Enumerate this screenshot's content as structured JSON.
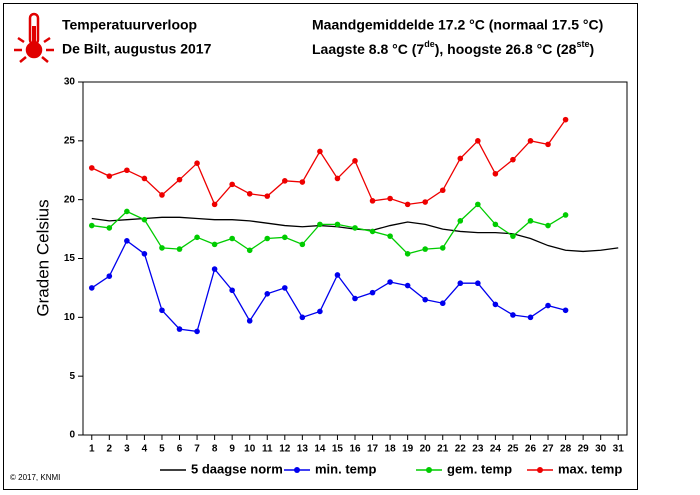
{
  "chart_data": {
    "type": "line",
    "title": "Temperatuurverloop",
    "subtitle": "De Bilt, augustus 2017",
    "stats_line1": "Maandgemiddelde 17.2 °C (normaal 17.5 °C)",
    "stats_line2": [
      "Laagste 8.8 °C (7",
      "de",
      "), hoogste 26.8 °C (28",
      "ste",
      ")"
    ],
    "y_label": "Graden Celsius",
    "credit": "© 2017, KNMI",
    "x": [
      1,
      2,
      3,
      4,
      5,
      6,
      7,
      8,
      9,
      10,
      11,
      12,
      13,
      14,
      15,
      16,
      17,
      18,
      19,
      20,
      21,
      22,
      23,
      24,
      25,
      26,
      27,
      28,
      29,
      30,
      31
    ],
    "xlim": [
      0.5,
      31.5
    ],
    "xticks": [
      1,
      2,
      3,
      4,
      5,
      6,
      7,
      8,
      9,
      10,
      11,
      12,
      13,
      14,
      15,
      16,
      17,
      18,
      19,
      20,
      21,
      22,
      23,
      24,
      25,
      26,
      27,
      28,
      29,
      30,
      31
    ],
    "ylim": [
      0,
      30
    ],
    "yticks": [
      0,
      5,
      10,
      15,
      20,
      25,
      30
    ],
    "grid": false,
    "legend": "bottom",
    "series": [
      {
        "name": "5 daagse norm",
        "color": "#000000",
        "markers": false,
        "values": [
          18.4,
          18.2,
          18.3,
          18.4,
          18.5,
          18.5,
          18.4,
          18.3,
          18.3,
          18.2,
          18.0,
          17.8,
          17.7,
          17.8,
          17.7,
          17.5,
          17.4,
          17.8,
          18.1,
          17.9,
          17.5,
          17.3,
          17.2,
          17.2,
          17.1,
          16.7,
          16.1,
          15.7,
          15.6,
          15.7,
          15.9
        ]
      },
      {
        "name": "min. temp",
        "color": "#0000ee",
        "markers": true,
        "values": [
          12.5,
          13.5,
          16.5,
          15.4,
          10.6,
          9.0,
          8.8,
          14.1,
          12.3,
          9.7,
          12.0,
          12.5,
          10.0,
          10.5,
          13.6,
          11.6,
          12.1,
          13.0,
          12.7,
          11.5,
          11.2,
          12.9,
          12.9,
          11.1,
          10.2,
          10.0,
          11.0,
          10.6,
          null,
          null,
          null
        ]
      },
      {
        "name": "gem. temp",
        "color": "#00cc00",
        "markers": true,
        "values": [
          17.8,
          17.6,
          19.0,
          18.3,
          15.9,
          15.8,
          16.8,
          16.2,
          16.7,
          15.7,
          16.7,
          16.8,
          16.2,
          17.9,
          17.9,
          17.6,
          17.3,
          16.9,
          15.4,
          15.8,
          15.9,
          18.2,
          19.6,
          17.9,
          16.9,
          18.2,
          17.8,
          18.7,
          null,
          null,
          null
        ]
      },
      {
        "name": "max. temp",
        "color": "#ee0000",
        "markers": true,
        "values": [
          22.7,
          22.0,
          22.5,
          21.8,
          20.4,
          21.7,
          23.1,
          19.6,
          21.3,
          20.5,
          20.3,
          21.6,
          21.5,
          24.1,
          21.8,
          23.3,
          19.9,
          20.1,
          19.6,
          19.8,
          20.8,
          23.5,
          25.0,
          22.2,
          23.4,
          25.0,
          24.7,
          26.8,
          null,
          null,
          null
        ]
      }
    ]
  }
}
